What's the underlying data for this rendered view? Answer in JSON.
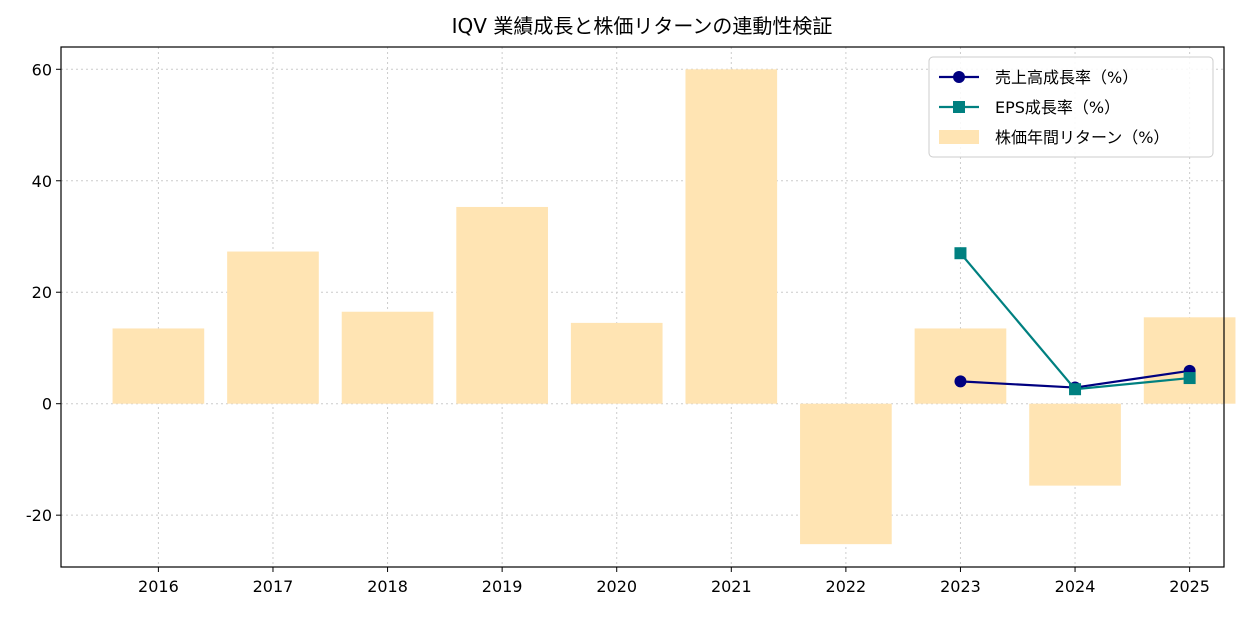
{
  "chart_data": {
    "type": "bar",
    "title": "IQV 業績成長と株価リターンの連動性検証",
    "categories": [
      "2016",
      "2017",
      "2018",
      "2019",
      "2020",
      "2021",
      "2022",
      "2023",
      "2024",
      "2025"
    ],
    "bars": {
      "name": "株価年間リターン（%）",
      "color": "#ffe4b3",
      "values": [
        13.5,
        27.3,
        16.5,
        35.3,
        14.5,
        60.0,
        -25.2,
        13.5,
        -14.7,
        15.5
      ]
    },
    "series": [
      {
        "name": "売上高成長率（%）",
        "color": "#000080",
        "marker": "circle",
        "values": [
          null,
          null,
          null,
          null,
          null,
          null,
          null,
          4.0,
          2.9,
          5.9
        ]
      },
      {
        "name": "EPS成長率（%）",
        "color": "#008080",
        "marker": "square",
        "values": [
          null,
          null,
          null,
          null,
          null,
          null,
          null,
          27.0,
          2.6,
          4.6
        ]
      }
    ],
    "ylim": [
      -29.3,
      64.0
    ],
    "yticks": [
      -20,
      0,
      20,
      40,
      60
    ],
    "grid": true,
    "legend_position": "top-right"
  }
}
